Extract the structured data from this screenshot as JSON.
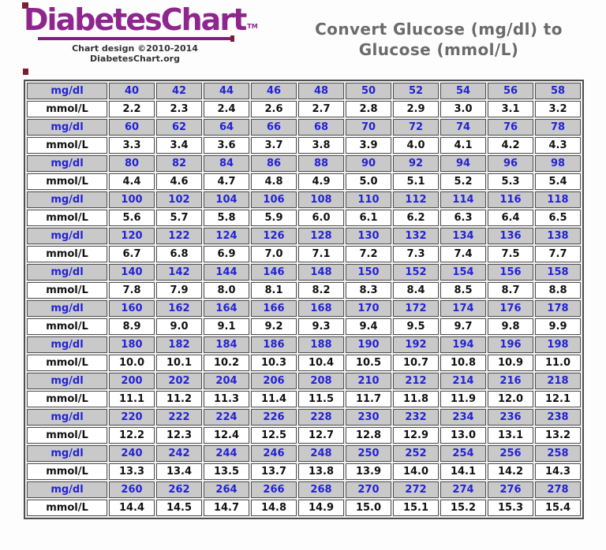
{
  "logo": {
    "title": "DiabetesChart",
    "tm": "TM",
    "credit_line1": "Chart design ©2010-2014",
    "credit_line2": "DiabetesChart.org"
  },
  "header": {
    "title_line1": "Convert Glucose (mg/dl) to",
    "title_line2": "Glucose (mmol/L)"
  },
  "colors": {
    "logo_purple": "#8e268e",
    "accent_maroon": "#7a1f33",
    "title_gray": "#6b6b6b",
    "mgdl_row_background": "#c9c9c9",
    "mgdl_text_blue": "#2323d6",
    "mmol_text_black": "#111111",
    "table_border_gray": "#4f4f4f"
  },
  "table": {
    "mgdl_label": "mg/dl",
    "mmol_label": "mmol/L",
    "row_pairs": [
      {
        "mgdl": [
          "40",
          "42",
          "44",
          "46",
          "48",
          "50",
          "52",
          "54",
          "56",
          "58"
        ],
        "mmol": [
          "2.2",
          "2.3",
          "2.4",
          "2.6",
          "2.7",
          "2.8",
          "2.9",
          "3.0",
          "3.1",
          "3.2"
        ]
      },
      {
        "mgdl": [
          "60",
          "62",
          "64",
          "66",
          "68",
          "70",
          "72",
          "74",
          "76",
          "78"
        ],
        "mmol": [
          "3.3",
          "3.4",
          "3.6",
          "3.7",
          "3.8",
          "3.9",
          "4.0",
          "4.1",
          "4.2",
          "4.3"
        ]
      },
      {
        "mgdl": [
          "80",
          "82",
          "84",
          "86",
          "88",
          "90",
          "92",
          "94",
          "96",
          "98"
        ],
        "mmol": [
          "4.4",
          "4.6",
          "4.7",
          "4.8",
          "4.9",
          "5.0",
          "5.1",
          "5.2",
          "5.3",
          "5.4"
        ]
      },
      {
        "mgdl": [
          "100",
          "102",
          "104",
          "106",
          "108",
          "110",
          "112",
          "114",
          "116",
          "118"
        ],
        "mmol": [
          "5.6",
          "5.7",
          "5.8",
          "5.9",
          "6.0",
          "6.1",
          "6.2",
          "6.3",
          "6.4",
          "6.5"
        ]
      },
      {
        "mgdl": [
          "120",
          "122",
          "124",
          "126",
          "128",
          "130",
          "132",
          "134",
          "136",
          "138"
        ],
        "mmol": [
          "6.7",
          "6.8",
          "6.9",
          "7.0",
          "7.1",
          "7.2",
          "7.3",
          "7.4",
          "7.5",
          "7.7"
        ]
      },
      {
        "mgdl": [
          "140",
          "142",
          "144",
          "146",
          "148",
          "150",
          "152",
          "154",
          "156",
          "158"
        ],
        "mmol": [
          "7.8",
          "7.9",
          "8.0",
          "8.1",
          "8.2",
          "8.3",
          "8.4",
          "8.5",
          "8.7",
          "8.8"
        ]
      },
      {
        "mgdl": [
          "160",
          "162",
          "164",
          "166",
          "168",
          "170",
          "172",
          "174",
          "176",
          "178"
        ],
        "mmol": [
          "8.9",
          "9.0",
          "9.1",
          "9.2",
          "9.3",
          "9.4",
          "9.5",
          "9.7",
          "9.8",
          "9.9"
        ]
      },
      {
        "mgdl": [
          "180",
          "182",
          "184",
          "186",
          "188",
          "190",
          "192",
          "194",
          "196",
          "198"
        ],
        "mmol": [
          "10.0",
          "10.1",
          "10.2",
          "10.3",
          "10.4",
          "10.5",
          "10.7",
          "10.8",
          "10.9",
          "11.0"
        ]
      },
      {
        "mgdl": [
          "200",
          "202",
          "204",
          "206",
          "208",
          "210",
          "212",
          "214",
          "216",
          "218"
        ],
        "mmol": [
          "11.1",
          "11.2",
          "11.3",
          "11.4",
          "11.5",
          "11.7",
          "11.8",
          "11.9",
          "12.0",
          "12.1"
        ]
      },
      {
        "mgdl": [
          "220",
          "222",
          "224",
          "226",
          "228",
          "230",
          "232",
          "234",
          "236",
          "238"
        ],
        "mmol": [
          "12.2",
          "12.3",
          "12.4",
          "12.5",
          "12.7",
          "12.8",
          "12.9",
          "13.0",
          "13.1",
          "13.2"
        ]
      },
      {
        "mgdl": [
          "240",
          "242",
          "244",
          "246",
          "248",
          "250",
          "252",
          "254",
          "256",
          "258"
        ],
        "mmol": [
          "13.3",
          "13.4",
          "13.5",
          "13.7",
          "13.8",
          "13.9",
          "14.0",
          "14.1",
          "14.2",
          "14.3"
        ]
      },
      {
        "mgdl": [
          "260",
          "262",
          "264",
          "266",
          "268",
          "270",
          "272",
          "274",
          "276",
          "278"
        ],
        "mmol": [
          "14.4",
          "14.5",
          "14.7",
          "14.8",
          "14.9",
          "15.0",
          "15.1",
          "15.2",
          "15.3",
          "15.4"
        ]
      }
    ]
  }
}
